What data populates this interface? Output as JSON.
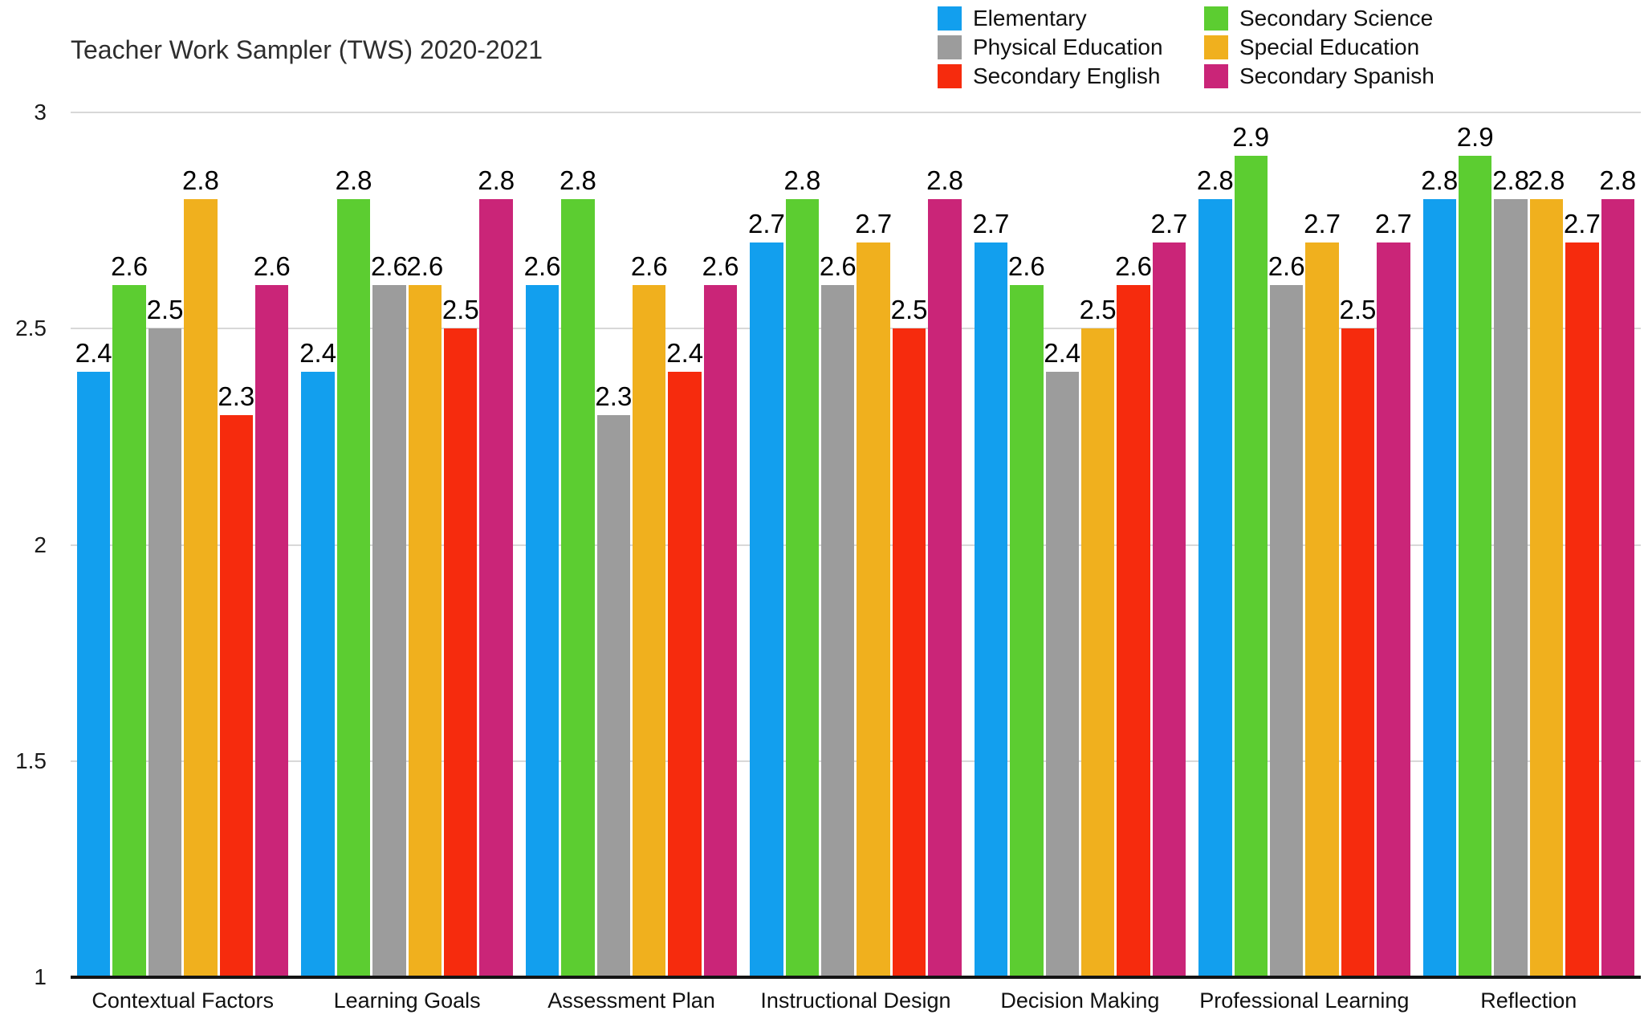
{
  "chart_data": {
    "type": "bar",
    "title": "Teacher Work Sampler (TWS) 2020-2021",
    "categories": [
      "Contextual Factors",
      "Learning Goals",
      "Assessment Plan",
      "Instructional Design",
      "Decision Making",
      "Professional Learning",
      "Reflection"
    ],
    "series": [
      {
        "name": "Elementary",
        "color": "#129fee",
        "values": [
          2.4,
          2.4,
          2.6,
          2.7,
          2.7,
          2.8,
          2.8
        ]
      },
      {
        "name": "Secondary Science",
        "color": "#5ccd31",
        "values": [
          2.6,
          2.8,
          2.8,
          2.8,
          2.6,
          2.9,
          2.9
        ]
      },
      {
        "name": "Physical Education",
        "color": "#9c9c9c",
        "values": [
          2.5,
          2.6,
          2.3,
          2.6,
          2.4,
          2.6,
          2.8
        ]
      },
      {
        "name": "Special Education",
        "color": "#f0b01e",
        "values": [
          2.8,
          2.6,
          2.6,
          2.7,
          2.5,
          2.7,
          2.8
        ]
      },
      {
        "name": "Secondary English",
        "color": "#f62b0d",
        "values": [
          2.3,
          2.5,
          2.4,
          2.5,
          2.6,
          2.5,
          2.7
        ]
      },
      {
        "name": "Secondary Spanish",
        "color": "#ca2578",
        "values": [
          2.6,
          2.8,
          2.6,
          2.8,
          2.7,
          2.7,
          2.8
        ]
      }
    ],
    "legend": {
      "position": "top-right",
      "columns": [
        [
          "Elementary",
          "Physical Education",
          "Secondary English"
        ],
        [
          "Secondary Science",
          "Special Education",
          "Secondary Spanish"
        ]
      ]
    },
    "y_axis": {
      "min": 1,
      "max": 3,
      "ticks": [
        {
          "label": "3",
          "value": 3
        },
        {
          "label": "2.5",
          "value": 2.5
        },
        {
          "label": "2",
          "value": 2
        },
        {
          "label": "1.5",
          "value": 1.5
        },
        {
          "label": "1",
          "value": 1
        }
      ]
    },
    "value_label_decimals": 1,
    "grid": true,
    "style": {
      "gridline_color": "#d8d8d8",
      "axis_color": "#141414",
      "label_color": "#000000"
    }
  }
}
